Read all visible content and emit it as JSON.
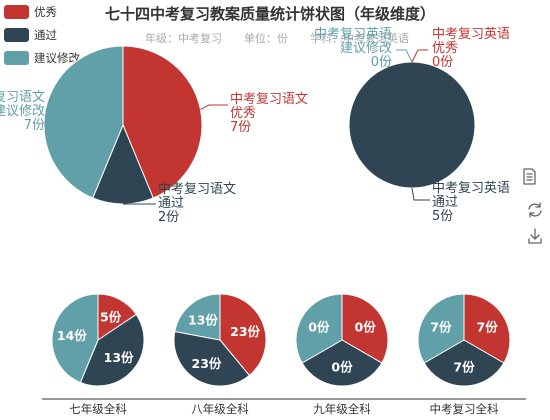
{
  "chart_data": {
    "title": "七十四中考复习教案质量统计饼状图（年级维度）",
    "subtitle": {
      "grade": "年级：中考复习",
      "unit": "单位：份",
      "subject": "学科：中考复习英语"
    },
    "legend": [
      {
        "name": "优秀",
        "color": "#c23531"
      },
      {
        "name": "通过",
        "color": "#2f4554"
      },
      {
        "name": "建议修改",
        "color": "#61a0a8"
      }
    ],
    "charts": [
      {
        "type": "pie",
        "name": "中考复习语文",
        "slices": [
          {
            "name": "优秀",
            "value": 7,
            "label": "7份"
          },
          {
            "name": "通过",
            "value": 2,
            "label": "2份"
          },
          {
            "name": "建议修改",
            "value": 7,
            "label": "7份"
          }
        ]
      },
      {
        "type": "pie",
        "name": "中考复习英语",
        "slices": [
          {
            "name": "优秀",
            "value": 0,
            "label": "0份"
          },
          {
            "name": "通过",
            "value": 5,
            "label": "5份"
          },
          {
            "name": "建议修改",
            "value": 0,
            "label": "0份"
          }
        ]
      },
      {
        "type": "pie",
        "name": "七年级全科",
        "slices": [
          {
            "name": "优秀",
            "value": 5,
            "label": "5份"
          },
          {
            "name": "通过",
            "value": 13,
            "label": "13份"
          },
          {
            "name": "建议修改",
            "value": 14,
            "label": "14份"
          }
        ]
      },
      {
        "type": "pie",
        "name": "八年级全科",
        "slices": [
          {
            "name": "优秀",
            "value": 23,
            "label": "23份"
          },
          {
            "name": "通过",
            "value": 23,
            "label": "23份"
          },
          {
            "name": "建议修改",
            "value": 13,
            "label": "13份"
          }
        ]
      },
      {
        "type": "pie",
        "name": "九年级全科",
        "slices": [
          {
            "name": "优秀",
            "value": 0,
            "label": "0份"
          },
          {
            "name": "通过",
            "value": 0,
            "label": "0份"
          },
          {
            "name": "建议修改",
            "value": 0,
            "label": "0份"
          }
        ]
      },
      {
        "type": "pie",
        "name": "中考复习全科",
        "slices": [
          {
            "name": "优秀",
            "value": 7,
            "label": "7份"
          },
          {
            "name": "通过",
            "value": 7,
            "label": "7份"
          },
          {
            "name": "建议修改",
            "value": 7,
            "label": "7份"
          }
        ]
      }
    ]
  },
  "toolbox": [
    {
      "name": "data-view-icon",
      "title": "数据视图"
    },
    {
      "name": "restore-icon",
      "title": "还原"
    },
    {
      "name": "save-image-icon",
      "title": "保存为图片"
    }
  ]
}
